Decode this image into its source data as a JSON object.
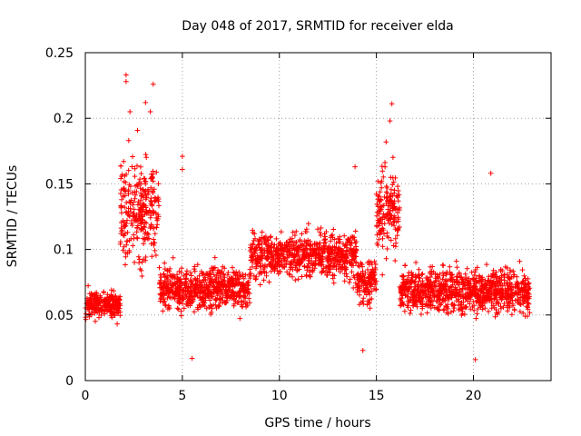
{
  "chart_data": {
    "type": "scatter",
    "title": "Day 048 of 2017, SRMTID for receiver elda",
    "xlabel": "GPS time / hours",
    "ylabel": "SRMTID / TECUs",
    "xlim": [
      0,
      24
    ],
    "ylim": [
      0,
      0.25
    ],
    "xticks": [
      0,
      5,
      10,
      15,
      20
    ],
    "yticks": [
      0,
      0.05,
      0.1,
      0.15,
      0.2,
      0.25
    ],
    "xtick_labels": [
      "0",
      "5",
      "10",
      "15",
      "20"
    ],
    "ytick_labels": [
      "0",
      "0.05",
      "0.1",
      "0.15",
      "0.2",
      "0.25"
    ],
    "grid": true,
    "marker": "+",
    "color": "#ff0000",
    "x_data_range": [
      0,
      22.9
    ],
    "density_profile": [
      {
        "x": [
          0.0,
          1.8
        ],
        "y_center": 0.058,
        "y_spread": 0.012
      },
      {
        "x": [
          1.8,
          3.8
        ],
        "y_center": 0.13,
        "y_spread": 0.045
      },
      {
        "x": [
          3.8,
          8.5
        ],
        "y_center": 0.07,
        "y_spread": 0.02
      },
      {
        "x": [
          8.5,
          14.0
        ],
        "y_center": 0.095,
        "y_spread": 0.02
      },
      {
        "x": [
          14.0,
          15.0
        ],
        "y_center": 0.075,
        "y_spread": 0.02
      },
      {
        "x": [
          15.0,
          16.2
        ],
        "y_center": 0.13,
        "y_spread": 0.035
      },
      {
        "x": [
          16.2,
          22.9
        ],
        "y_center": 0.068,
        "y_spread": 0.02
      }
    ],
    "notable_points": [
      {
        "x": 2.1,
        "y": 0.233
      },
      {
        "x": 2.1,
        "y": 0.228
      },
      {
        "x": 3.5,
        "y": 0.226
      },
      {
        "x": 3.1,
        "y": 0.212
      },
      {
        "x": 3.35,
        "y": 0.205
      },
      {
        "x": 2.3,
        "y": 0.205
      },
      {
        "x": 15.8,
        "y": 0.211
      },
      {
        "x": 15.7,
        "y": 0.198
      },
      {
        "x": 15.5,
        "y": 0.182
      },
      {
        "x": 13.9,
        "y": 0.163
      },
      {
        "x": 20.9,
        "y": 0.158
      },
      {
        "x": 5.0,
        "y": 0.171
      },
      {
        "x": 5.0,
        "y": 0.161
      },
      {
        "x": 5.5,
        "y": 0.017
      },
      {
        "x": 20.1,
        "y": 0.016
      },
      {
        "x": 14.3,
        "y": 0.023
      }
    ]
  }
}
